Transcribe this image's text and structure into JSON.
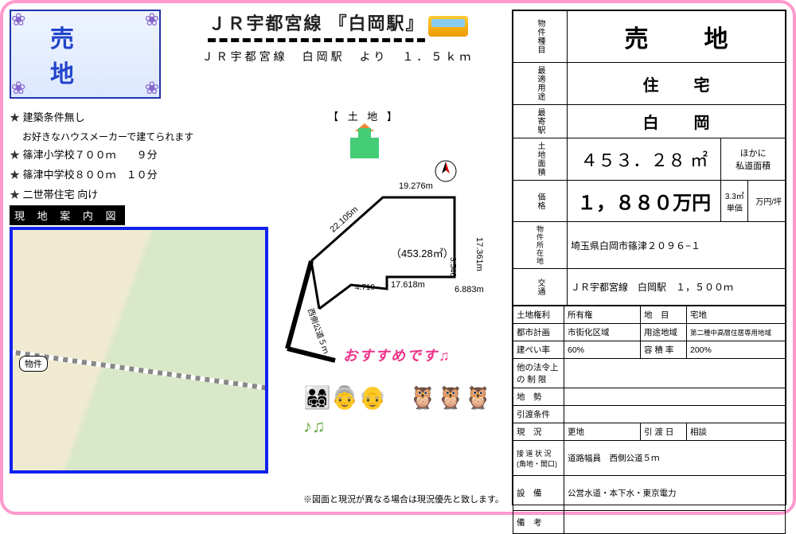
{
  "badge": {
    "title": "売　地"
  },
  "station": {
    "line_station": "ＪＲ宇都宮線 『白岡駅』",
    "distance_text": "ＪＲ宇都宮線　白岡駅　より　１．５ｋｍ"
  },
  "bullets": [
    {
      "text": "建築条件無し",
      "sub": "お好きなハウスメーカーで建てられます"
    },
    {
      "text": "篠津小学校７００ｍ　　９分"
    },
    {
      "text": "篠津中学校８００ｍ　１０分"
    },
    {
      "text": "二世帯住宅 向け"
    }
  ],
  "land_section_label": "【 土 地 】",
  "map_label": "現 地 案 内 図",
  "map_marker": "物件",
  "plot": {
    "area_text": "（453.28㎡）",
    "edges": {
      "top": "19.276m",
      "right": "17.361m",
      "bottom_right": "6.883m",
      "inner_right": "3.546",
      "bottom_mid": "17.618m",
      "bottom_left_small": "4.719",
      "left_diag": "22.105m"
    },
    "road_label": "西側公道５ｍ"
  },
  "recommend": "おすすめです♫",
  "disclaimer": "※図面と現況が異なる場合は現況優先と致します。",
  "spec": {
    "type_label": "物件種目",
    "type_value": "売　地",
    "use_label": "最適用途",
    "use_value": "住　宅",
    "station_label": "最寄駅",
    "station_value": "白　岡",
    "area_label": "土地面積",
    "area_value": "４５３．２８ ㎡",
    "area_note": "ほかに\n私道面積",
    "price_label": "価格",
    "price_value": "１，８８０万円",
    "price_unit": "3.3㎡\n単価",
    "price_per": "万円/坪",
    "address_label": "物件所在地",
    "address_value": "埼玉県白岡市篠津２０９６−１",
    "access_label": "交通",
    "access_value": "ＪＲ宇都宮線　白岡駅　１，５００ｍ",
    "rows": [
      [
        "土地権利",
        "所有権",
        "地　目",
        "宅地"
      ],
      [
        "都市計画",
        "市街化区域",
        "用途地域",
        "第二種中高層住居専用地域"
      ],
      [
        "建ぺい率",
        "60%",
        "容 積 率",
        "200%"
      ],
      [
        "他の法令上\nの 制 限",
        "",
        "",
        ""
      ],
      [
        "地　勢",
        "",
        "",
        ""
      ],
      [
        "引渡条件",
        "",
        "",
        ""
      ],
      [
        "現　況",
        "更地",
        "引 渡 日",
        "相談"
      ],
      [
        "接 道 状 況\n(角地・間口)",
        "道路幅員　西側公道５ｍ",
        "",
        ""
      ],
      [
        "設　備",
        "公営水道・本下水・東京電力",
        "",
        ""
      ],
      [
        "備　考",
        "",
        "",
        ""
      ]
    ]
  },
  "colors": {
    "border": "#ff99cc",
    "badge_text": "#2244cc",
    "map_border": "#1122ee",
    "recommend": "#ee3388"
  }
}
